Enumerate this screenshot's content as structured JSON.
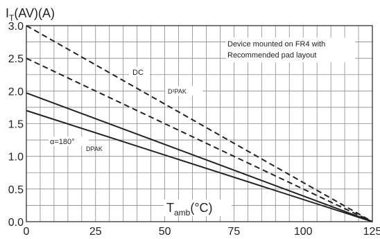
{
  "chart_data": {
    "type": "line",
    "title": "",
    "ylabel": {
      "main": "I",
      "sub": "T",
      "rest": "(AV)(A)"
    },
    "xlabel": {
      "main": "T",
      "sub": "amb",
      "rest": "(°C)"
    },
    "xlim": [
      0,
      125
    ],
    "ylim": [
      0,
      3.0
    ],
    "x_ticks": [
      0,
      25,
      50,
      75,
      100,
      125
    ],
    "y_ticks": [
      0.0,
      0.5,
      1.0,
      1.5,
      2.0,
      2.5,
      3.0
    ],
    "x_tick_labels": [
      "0",
      "25",
      "50",
      "75",
      "100",
      "125"
    ],
    "y_tick_labels": [
      "0.0",
      "0.5",
      "1.0",
      "1.5",
      "2.0",
      "2.5",
      "3.0"
    ],
    "grid": true,
    "series": [
      {
        "x": [
          0,
          125
        ],
        "y": [
          3.0,
          0
        ],
        "style": "dashed"
      },
      {
        "x": [
          0,
          125
        ],
        "y": [
          2.5,
          0
        ],
        "style": "dashed"
      },
      {
        "x": [
          0,
          125
        ],
        "y": [
          1.97,
          0
        ],
        "style": "solid"
      },
      {
        "x": [
          0,
          125
        ],
        "y": [
          1.7,
          0
        ],
        "style": "solid"
      }
    ],
    "annotations": {
      "note_line1": "Device mounted on FR4 with",
      "note_line2": "Recommended pad layout",
      "dc": "DC",
      "d2pak": "D²PAK",
      "alpha": "α=180°",
      "dpak": "DPAK"
    }
  }
}
